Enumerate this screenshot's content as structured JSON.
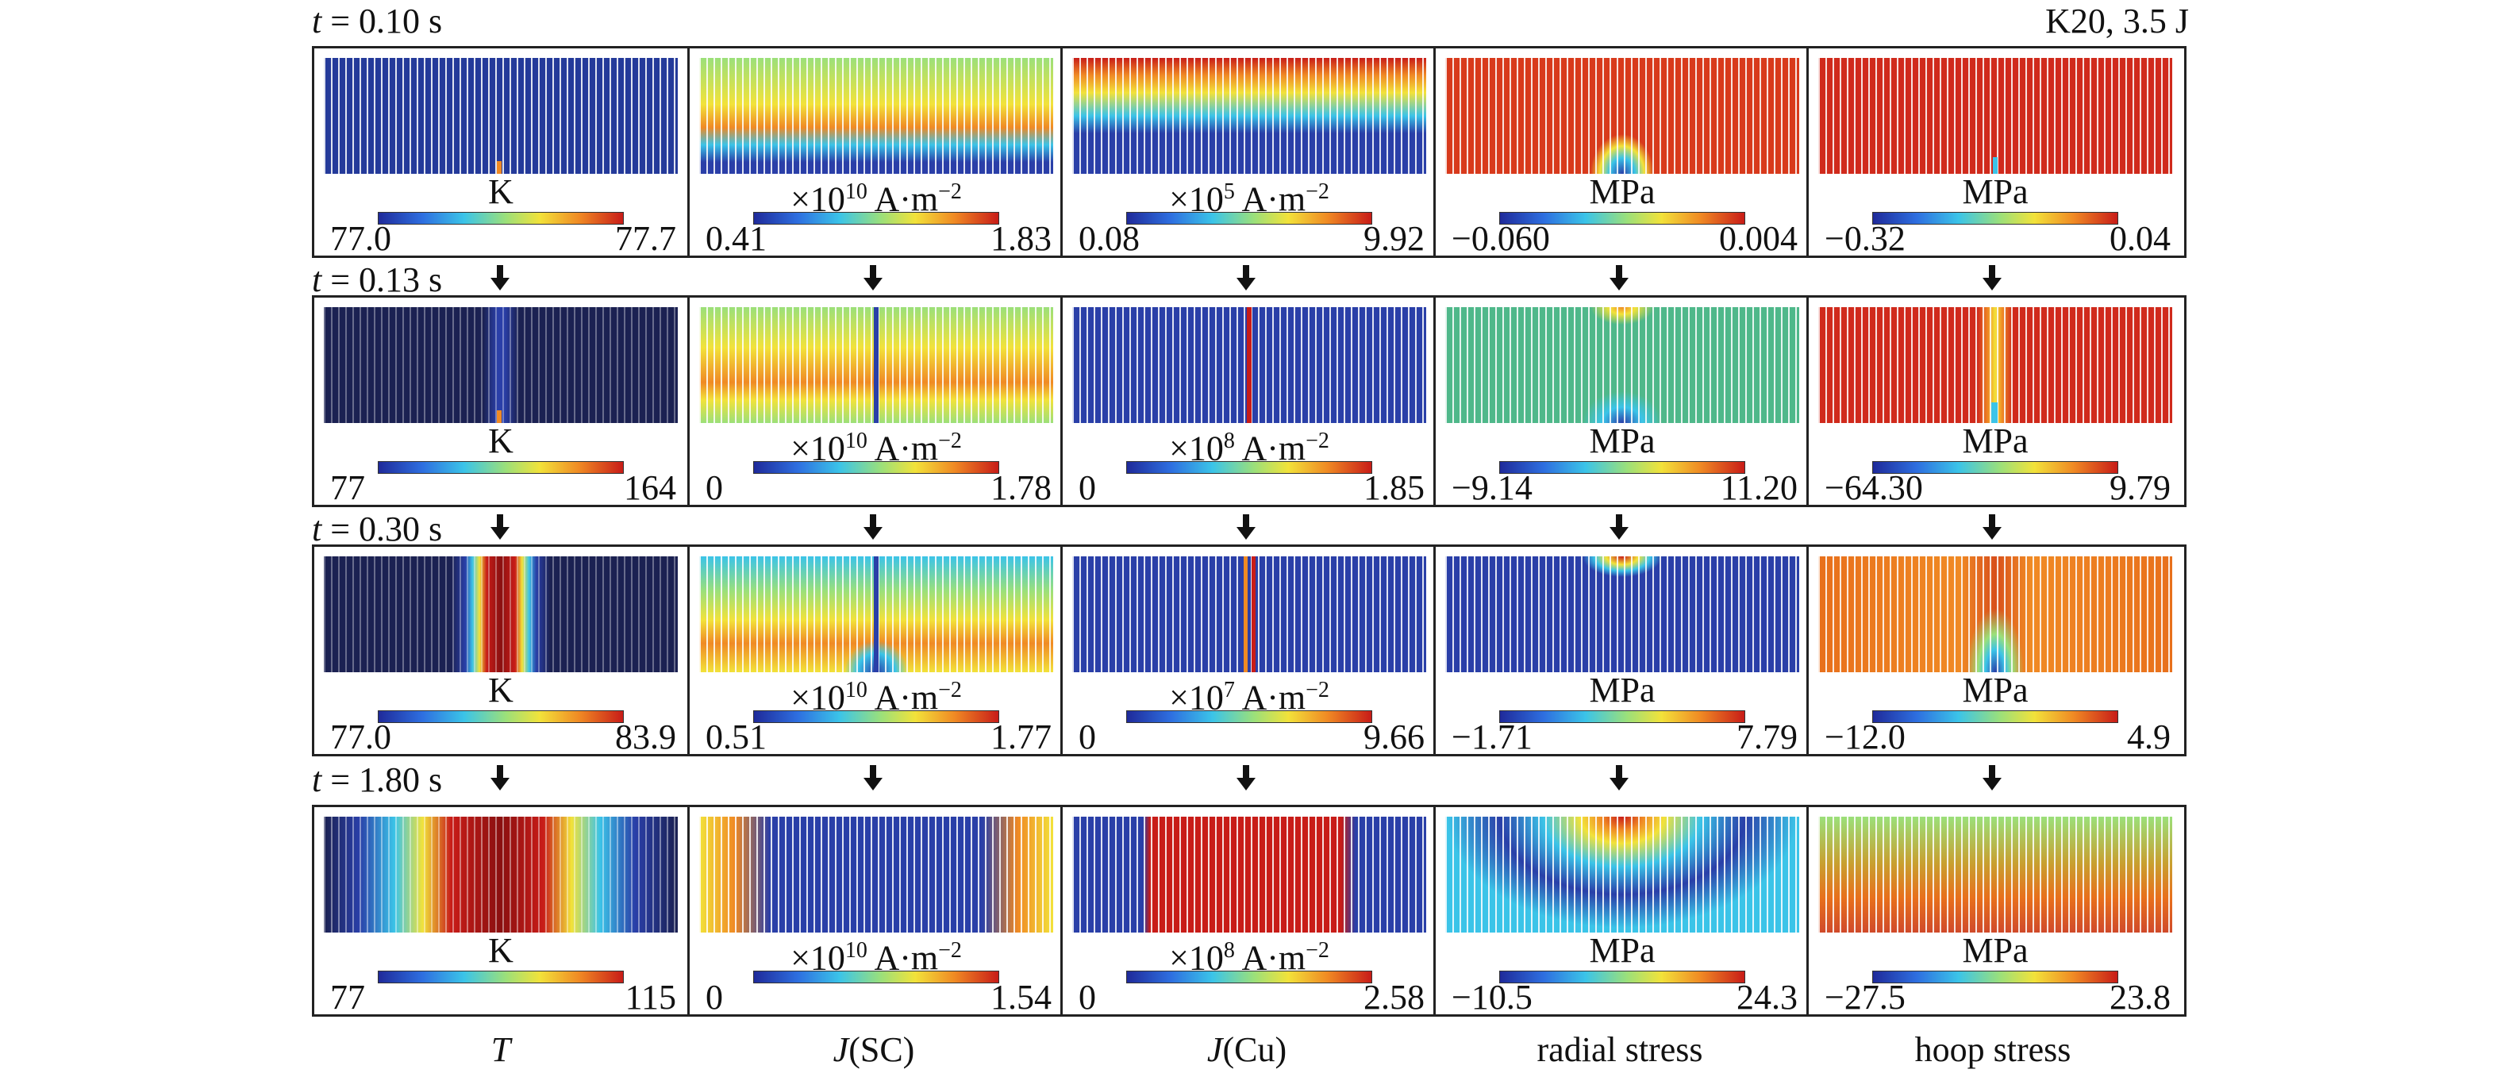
{
  "header": {
    "right_label": "K20, 3.5 J"
  },
  "rows": [
    {
      "time_var": "t",
      "time_text": " = 0.10 s",
      "cells": [
        {
          "unit_main": "K",
          "unit_exp": "",
          "unit_tail": "",
          "min": "77.0",
          "max": "77.7"
        },
        {
          "unit_main": "×10",
          "unit_exp": "10",
          "unit_tail": " A·m",
          "unit_exp2": "−2",
          "min": "0.41",
          "max": "1.83"
        },
        {
          "unit_main": "×10",
          "unit_exp": "5",
          "unit_tail": " A·m",
          "unit_exp2": "−2",
          "min": "0.08",
          "max": "9.92"
        },
        {
          "unit_main": "MPa",
          "unit_exp": "",
          "unit_tail": "",
          "min": "−0.060",
          "max": "0.004"
        },
        {
          "unit_main": "MPa",
          "unit_exp": "",
          "unit_tail": "",
          "min": "−0.32",
          "max": "0.04"
        }
      ]
    },
    {
      "time_var": "t",
      "time_text": " = 0.13 s",
      "cells": [
        {
          "unit_main": "K",
          "unit_exp": "",
          "unit_tail": "",
          "min": "77",
          "max": "164"
        },
        {
          "unit_main": "×10",
          "unit_exp": "10",
          "unit_tail": " A·m",
          "unit_exp2": "−2",
          "min": "0",
          "max": "1.78"
        },
        {
          "unit_main": "×10",
          "unit_exp": "8",
          "unit_tail": " A·m",
          "unit_exp2": "−2",
          "min": "0",
          "max": "1.85"
        },
        {
          "unit_main": "MPa",
          "unit_exp": "",
          "unit_tail": "",
          "min": "−9.14",
          "max": "11.20"
        },
        {
          "unit_main": "MPa",
          "unit_exp": "",
          "unit_tail": "",
          "min": "−64.30",
          "max": "9.79"
        }
      ]
    },
    {
      "time_var": "t",
      "time_text": " = 0.30 s",
      "cells": [
        {
          "unit_main": "K",
          "unit_exp": "",
          "unit_tail": "",
          "min": "77.0",
          "max": "83.9"
        },
        {
          "unit_main": "×10",
          "unit_exp": "10",
          "unit_tail": " A·m",
          "unit_exp2": "−2",
          "min": "0.51",
          "max": "1.77"
        },
        {
          "unit_main": "×10",
          "unit_exp": "7",
          "unit_tail": " A·m",
          "unit_exp2": "−2",
          "min": "0",
          "max": "9.66"
        },
        {
          "unit_main": "MPa",
          "unit_exp": "",
          "unit_tail": "",
          "min": "−1.71",
          "max": "7.79"
        },
        {
          "unit_main": "MPa",
          "unit_exp": "",
          "unit_tail": "",
          "min": "−12.0",
          "max": "4.9"
        }
      ]
    },
    {
      "time_var": "t",
      "time_text": " = 1.80 s",
      "cells": [
        {
          "unit_main": "K",
          "unit_exp": "",
          "unit_tail": "",
          "min": "77",
          "max": "115"
        },
        {
          "unit_main": "×10",
          "unit_exp": "10",
          "unit_tail": " A·m",
          "unit_exp2": "−2",
          "min": "0",
          "max": "1.54"
        },
        {
          "unit_main": "×10",
          "unit_exp": "8",
          "unit_tail": " A·m",
          "unit_exp2": "−2",
          "min": "0",
          "max": "2.58"
        },
        {
          "unit_main": "MPa",
          "unit_exp": "",
          "unit_tail": "",
          "min": "−10.5",
          "max": "24.3"
        },
        {
          "unit_main": "MPa",
          "unit_exp": "",
          "unit_tail": "",
          "min": "−27.5",
          "max": "23.8"
        }
      ]
    }
  ],
  "columns": [
    {
      "italic": "T",
      "plain": ""
    },
    {
      "italic": "J",
      "plain": "(SC)"
    },
    {
      "italic": "J",
      "plain": "(Cu)"
    },
    {
      "italic": "",
      "plain": "radial stress"
    },
    {
      "italic": "",
      "plain": "hoop stress"
    }
  ],
  "colors": {
    "dark_navy": "#1b2152",
    "blue": "#2a3fa8",
    "cyan": "#3bc4e8",
    "green": "#5fbf8a",
    "yellow": "#f2e23a",
    "orange": "#f08a24",
    "red": "#c81c18"
  }
}
